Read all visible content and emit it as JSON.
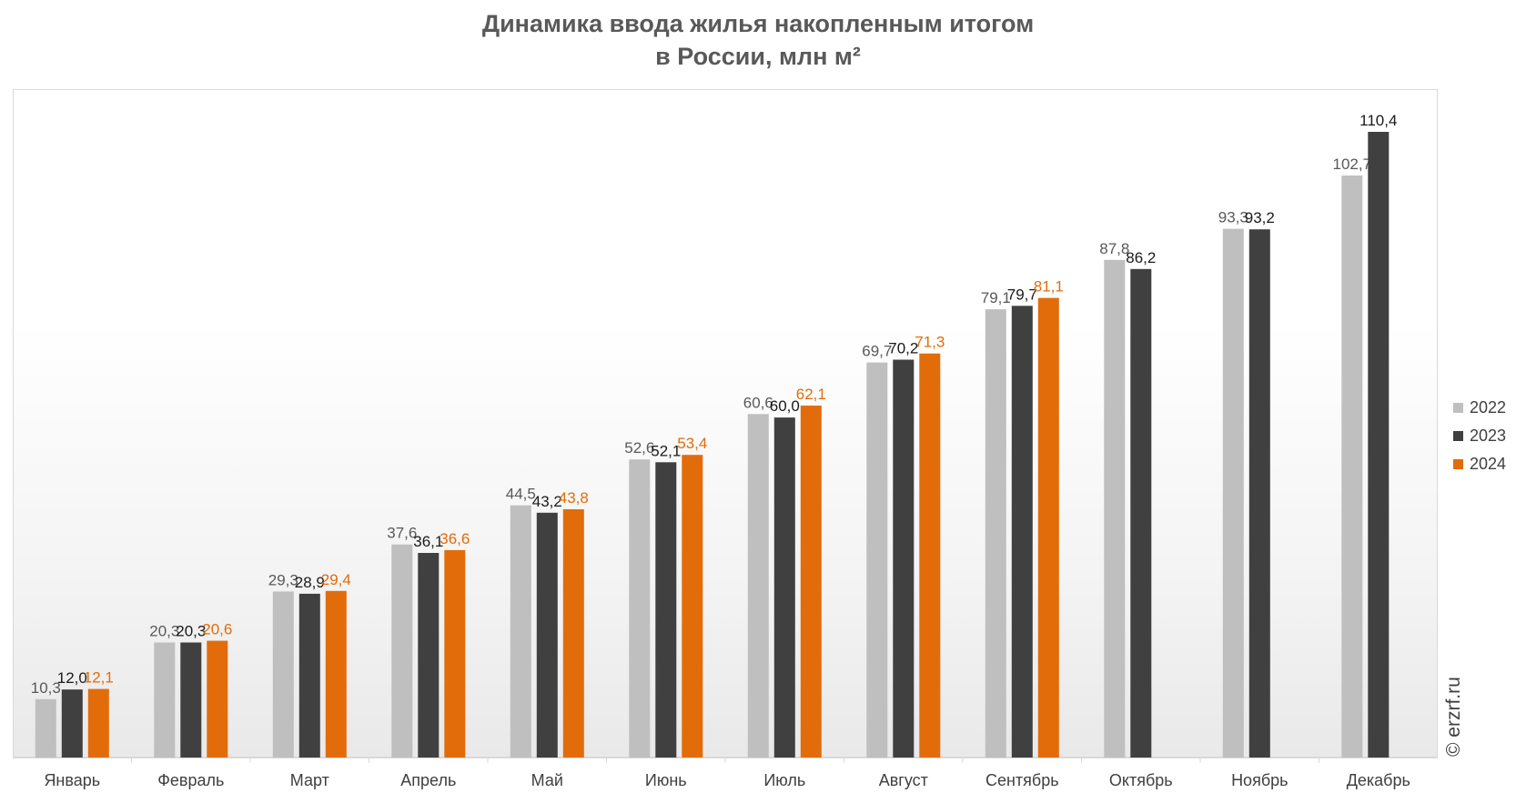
{
  "title_line1": "Динамика ввода жилья накопленным итогом",
  "title_line2": "в России, млн м²",
  "watermark": "© erzrf.ru",
  "chart_data": {
    "type": "bar",
    "title": "Динамика ввода жилья накопленным итогом в России, млн м²",
    "categories": [
      "Январь",
      "Февраль",
      "Март",
      "Апрель",
      "Май",
      "Июнь",
      "Июль",
      "Август",
      "Сентябрь",
      "Октябрь",
      "Ноябрь",
      "Декабрь"
    ],
    "series": [
      {
        "name": "2022",
        "color": "#bfbfbf",
        "label_color": "#595959",
        "values": [
          10.3,
          20.3,
          29.3,
          37.6,
          44.5,
          52.6,
          60.6,
          69.7,
          79.1,
          87.8,
          93.3,
          102.7
        ]
      },
      {
        "name": "2023",
        "color": "#404040",
        "label_color": "#1a1a1a",
        "values": [
          12.0,
          20.3,
          28.9,
          36.1,
          43.2,
          52.1,
          60.0,
          70.2,
          79.7,
          86.2,
          93.2,
          110.4
        ]
      },
      {
        "name": "2024",
        "color": "#e36c0a",
        "label_color": "#e36c0a",
        "values": [
          12.1,
          20.6,
          29.4,
          36.6,
          43.8,
          53.4,
          62.1,
          71.3,
          81.1,
          null,
          null,
          null
        ]
      }
    ],
    "ylim": [
      0,
      110.4
    ],
    "grid": false,
    "legend_position": "right",
    "data_labels": true
  }
}
